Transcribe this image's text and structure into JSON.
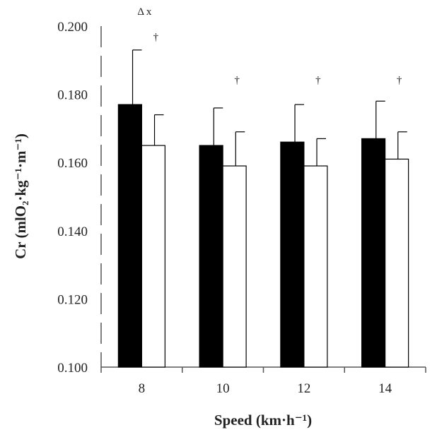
{
  "chart_data": {
    "type": "bar",
    "title": "",
    "ylabel": "Cr (mlO₂·kg⁻¹·m⁻¹)",
    "xlabel": "Speed (km·h⁻¹)",
    "categories": [
      "8",
      "10",
      "12",
      "14"
    ],
    "ylim": [
      0.1,
      0.2
    ],
    "yticks": [
      "0.100",
      "0.120",
      "0.140",
      "0.160",
      "0.180",
      "0.200"
    ],
    "series": [
      {
        "values": [
          0.177,
          0.165,
          0.166,
          0.167
        ],
        "errors": [
          0.016,
          0.011,
          0.011,
          0.011
        ],
        "color": "#000000"
      },
      {
        "values": [
          0.165,
          0.159,
          0.159,
          0.161
        ],
        "errors": [
          0.009,
          0.01,
          0.008,
          0.008
        ],
        "color": "#ffffff"
      }
    ],
    "annotations": [
      {
        "category": 0,
        "text": "Δ  x"
      },
      {
        "category": 0,
        "text": "†"
      },
      {
        "category": 1,
        "text": "†"
      },
      {
        "category": 2,
        "text": "†"
      },
      {
        "category": 3,
        "text": "†"
      }
    ],
    "grid": false,
    "legend": "none"
  }
}
